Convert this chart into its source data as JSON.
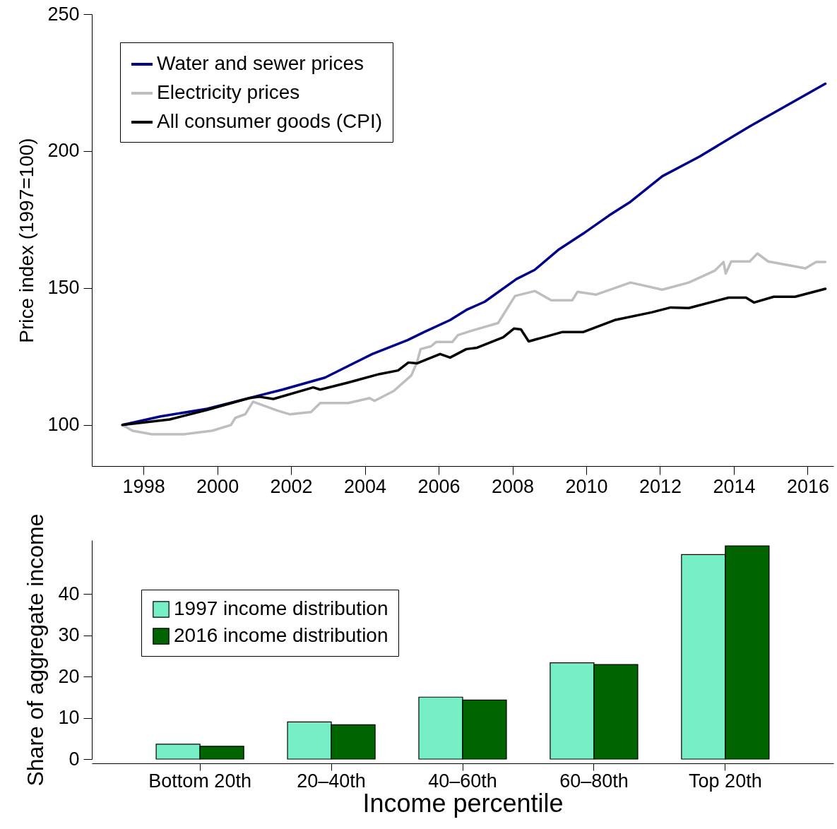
{
  "chart_data": [
    {
      "type": "line",
      "ylabel": "Price index (1997=100)",
      "xlim": [
        1996.6,
        2016.7
      ],
      "xticks": [
        1998,
        2000,
        2002,
        2004,
        2006,
        2008,
        2010,
        2012,
        2014,
        2016
      ],
      "ylim": [
        85,
        250
      ],
      "yticks": [
        100,
        150,
        200,
        250
      ],
      "legend": "top left",
      "grid": false,
      "series": [
        {
          "name": "Water and sewer prices",
          "color": "#00008b",
          "x": [
            1997.43,
            1998.46,
            1999.72,
            2001.0,
            2001.77,
            2002.92,
            2004.2,
            2005.16,
            2005.6,
            2006.31,
            2006.75,
            2007.25,
            2008.11,
            2008.6,
            2009.26,
            2009.91,
            2010.62,
            2011.2,
            2012.06,
            2013.07,
            2014.43,
            2016.48
          ],
          "values": [
            100,
            103.1,
            105.9,
            110.3,
            112.9,
            117.3,
            125.9,
            131,
            133.9,
            138.3,
            142,
            145,
            153.3,
            156.6,
            164.1,
            169.8,
            176.5,
            181.5,
            190.8,
            198,
            209,
            224.6
          ]
        },
        {
          "name": "Electricity prices",
          "color": "#bebebe",
          "x": [
            1997.43,
            1997.7,
            1998.23,
            1999.09,
            1999.86,
            2000.37,
            2000.49,
            2000.76,
            2000.97,
            2001.64,
            2001.96,
            2002.54,
            2002.79,
            2003.55,
            2004.13,
            2004.26,
            2004.78,
            2005.26,
            2005.41,
            2005.51,
            2005.79,
            2005.93,
            2006.37,
            2006.52,
            2006.89,
            2007.61,
            2008.07,
            2008.61,
            2009.05,
            2009.62,
            2009.76,
            2010.27,
            2011.2,
            2012.06,
            2012.78,
            2013.49,
            2013.72,
            2013.78,
            2013.93,
            2014.43,
            2014.64,
            2014.93,
            2015.94,
            2016.23,
            2016.48
          ],
          "values": [
            100,
            97.9,
            96.6,
            96.6,
            97.9,
            100,
            102.6,
            103.9,
            108.5,
            105.2,
            103.9,
            104.7,
            108,
            108,
            109.8,
            108.8,
            112.4,
            118.1,
            122.8,
            127.7,
            128.7,
            130.3,
            130.3,
            132.8,
            134.4,
            137.2,
            147.1,
            148.9,
            145.5,
            145.5,
            148.6,
            147.6,
            152,
            149.4,
            152,
            156.4,
            159.5,
            155.3,
            159.7,
            159.7,
            162.6,
            159.7,
            157.2,
            159.5,
            159.5
          ]
        },
        {
          "name": "All consumer goods (CPI)",
          "color": "#000000",
          "x": [
            1997.43,
            1998.71,
            1999.72,
            2000.87,
            2001.14,
            2001.52,
            2002.6,
            2002.79,
            2003.55,
            2004.4,
            2004.9,
            2005.18,
            2005.41,
            2006.04,
            2006.31,
            2006.75,
            2007.04,
            2007.75,
            2008.04,
            2008.23,
            2008.44,
            2009.34,
            2009.91,
            2010.77,
            2011.77,
            2012.29,
            2012.78,
            2013.86,
            2014.33,
            2014.55,
            2015.08,
            2015.66,
            2016.48
          ],
          "values": [
            100,
            102,
            105.5,
            109.8,
            110.3,
            109.5,
            113.7,
            112.9,
            115.5,
            118.6,
            119.9,
            122.8,
            122.5,
            125.9,
            124.6,
            127.7,
            128.2,
            132,
            135.2,
            134.9,
            130.5,
            133.9,
            133.9,
            138.3,
            141.1,
            142.9,
            142.7,
            146.5,
            146.5,
            144.7,
            146.8,
            146.8,
            149.7
          ]
        }
      ]
    },
    {
      "type": "bar",
      "xlabel": "Income percentile",
      "ylabel": "Share of aggregate income",
      "categories": [
        "Bottom 20th",
        "20–40th",
        "40–60th",
        "60–80th",
        "Top 20th"
      ],
      "ylim": [
        0,
        53
      ],
      "yticks": [
        0,
        10,
        20,
        30,
        40
      ],
      "legend": "top left",
      "grid": false,
      "series": [
        {
          "name": "1997 income distribution",
          "color": "#76eec6",
          "values": [
            3.6,
            9.0,
            15.0,
            23.3,
            49.5
          ]
        },
        {
          "name": "2016 income distribution",
          "color": "#006400",
          "values": [
            3.1,
            8.3,
            14.3,
            22.9,
            51.6
          ]
        }
      ]
    }
  ]
}
